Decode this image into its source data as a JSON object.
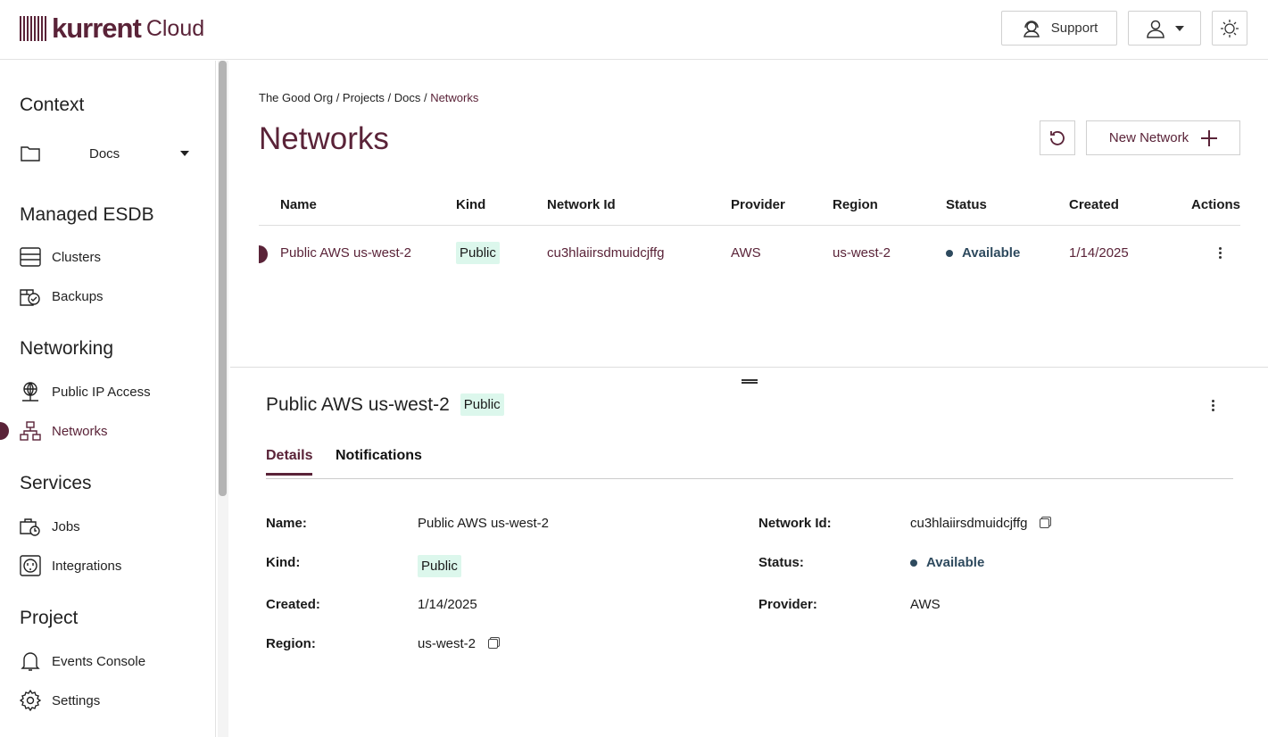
{
  "header": {
    "brand": "kurrent",
    "brand_suffix": "Cloud",
    "support_label": "Support",
    "icons": [
      "support-icon",
      "user-icon",
      "sun-icon"
    ]
  },
  "sidebar": {
    "context_heading": "Context",
    "context_value": "Docs",
    "sections": [
      {
        "heading": "Managed ESDB",
        "items": [
          {
            "label": "Clusters",
            "icon": "server-icon"
          },
          {
            "label": "Backups",
            "icon": "backup-icon"
          }
        ]
      },
      {
        "heading": "Networking",
        "items": [
          {
            "label": "Public IP Access",
            "icon": "globe-icon"
          },
          {
            "label": "Networks",
            "icon": "network-icon",
            "active": true
          }
        ]
      },
      {
        "heading": "Services",
        "items": [
          {
            "label": "Jobs",
            "icon": "jobs-icon"
          },
          {
            "label": "Integrations",
            "icon": "plug-icon"
          }
        ]
      },
      {
        "heading": "Project",
        "items": [
          {
            "label": "Events Console",
            "icon": "bell-icon"
          },
          {
            "label": "Settings",
            "icon": "gear-icon"
          }
        ]
      }
    ]
  },
  "breadcrumb": {
    "path": "The Good Org / Projects / Docs / ",
    "current": "Networks"
  },
  "page_title": "Networks",
  "new_network_label": "New Network",
  "table": {
    "headers": [
      "Name",
      "Kind",
      "Network Id",
      "Provider",
      "Region",
      "Status",
      "Created",
      "Actions"
    ],
    "rows": [
      {
        "name": "Public AWS us-west-2",
        "kind": "Public",
        "network_id": "cu3hlaiirsdmuidcjffg",
        "provider": "AWS",
        "region": "us-west-2",
        "status": "Available",
        "created": "1/14/2025"
      }
    ]
  },
  "detail": {
    "title": "Public AWS us-west-2",
    "kind_badge": "Public",
    "tabs": [
      "Details",
      "Notifications"
    ],
    "fields": {
      "name_label": "Name:",
      "name": "Public AWS us-west-2",
      "kind_label": "Kind:",
      "kind": "Public",
      "created_label": "Created:",
      "created": "1/14/2025",
      "region_label": "Region:",
      "region": "us-west-2",
      "network_id_label": "Network Id:",
      "network_id": "cu3hlaiirsdmuidcjffg",
      "status_label": "Status:",
      "status": "Available",
      "provider_label": "Provider:",
      "provider": "AWS"
    }
  },
  "colors": {
    "brand": "#5a2338",
    "badge": "#dcf7ec",
    "status": "#2e4a5e"
  }
}
